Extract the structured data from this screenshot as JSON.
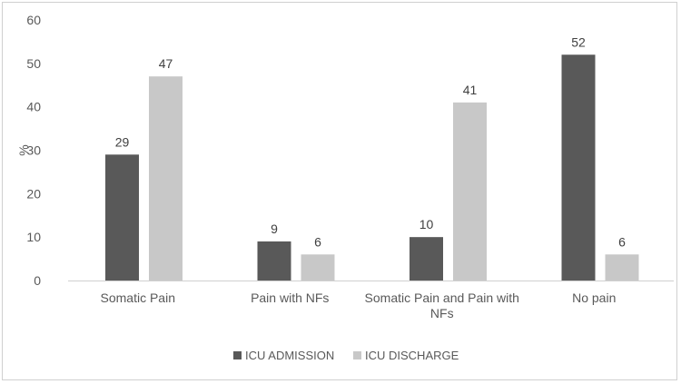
{
  "chart_data": {
    "type": "bar",
    "categories": [
      [
        "Somatic Pain"
      ],
      [
        "Pain with NFs"
      ],
      [
        "Somatic Pain and Pain with",
        "NFs"
      ],
      [
        "No pain"
      ]
    ],
    "series": [
      {
        "name": "ICU ADMISSION",
        "values": [
          29,
          9,
          10,
          52
        ],
        "color": "#595959"
      },
      {
        "name": "ICU DISCHARGE",
        "values": [
          47,
          6,
          41,
          6
        ],
        "color": "#c8c8c8"
      }
    ],
    "title": "",
    "xlabel": "",
    "ylabel": "%",
    "ylim": [
      0,
      60
    ],
    "yticks": [
      "0",
      "10",
      "20",
      "30",
      "40",
      "50",
      "60"
    ],
    "grid": false,
    "legend_position": "bottom"
  }
}
